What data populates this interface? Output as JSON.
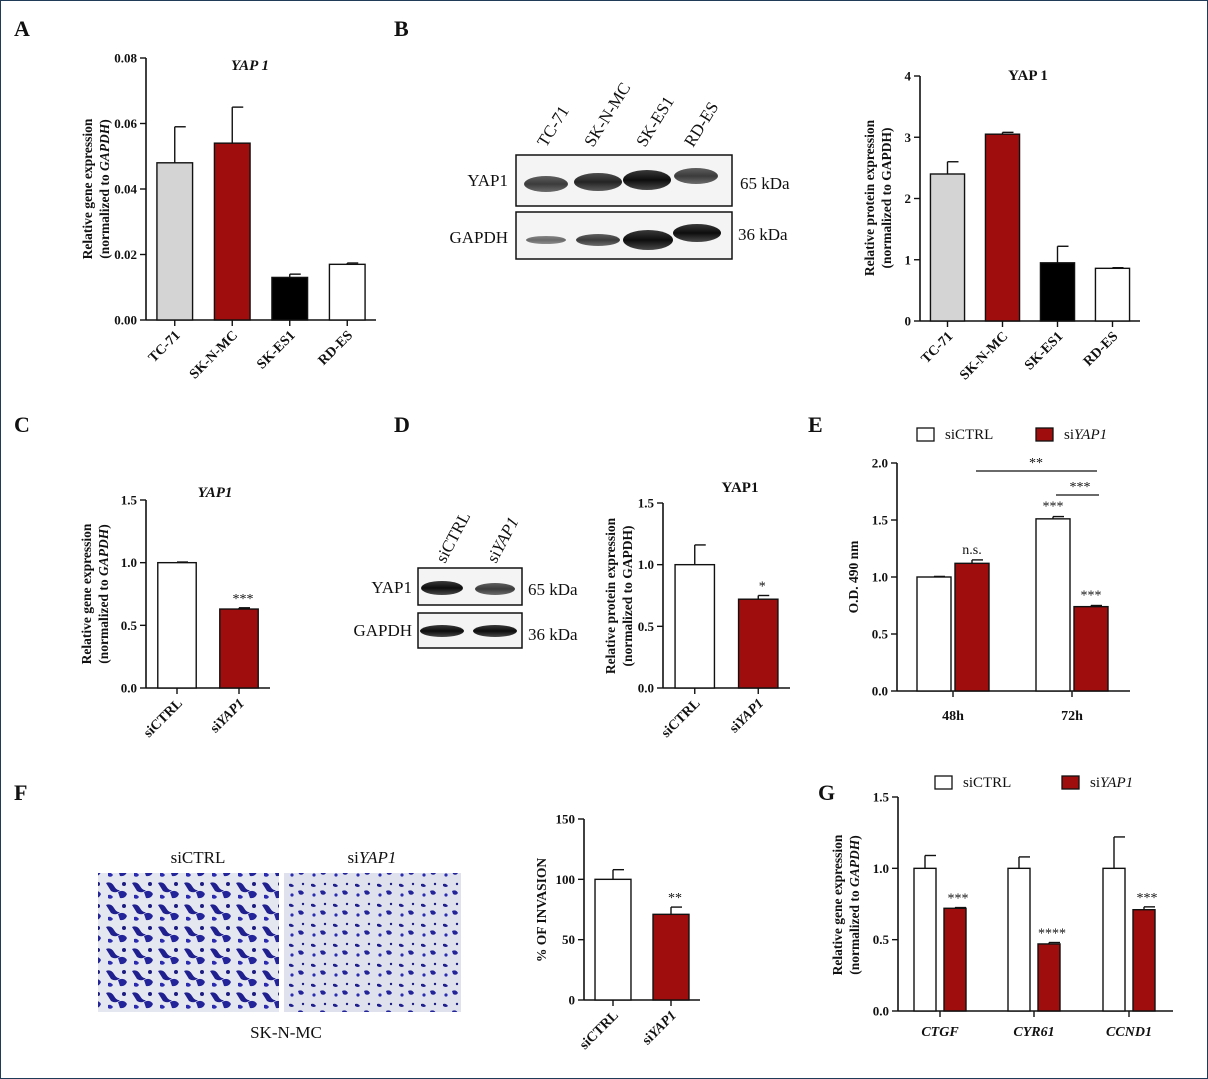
{
  "panel_labels": [
    "A",
    "B",
    "C",
    "D",
    "E",
    "F",
    "G"
  ],
  "colors": {
    "light_gray": "#d4d4d4",
    "dark_red": "#a00d0d",
    "black": "#000000",
    "white": "#ffffff",
    "blot_stain": "#2b2bb0"
  },
  "blot_B": {
    "lanes": [
      "TC-71",
      "SK-N-MC",
      "SK-ES1",
      "RD-ES"
    ],
    "rows": [
      {
        "label": "YAP1",
        "kda": "65 kDa"
      },
      {
        "label": "GAPDH",
        "kda": "36 kDa"
      }
    ]
  },
  "blot_D": {
    "lanes": [
      "siCTRL",
      "si",
      "YAP1"
    ],
    "rows": [
      {
        "label": "YAP1",
        "kda": "65 kDa"
      },
      {
        "label": "GAPDH",
        "kda": "36 kDa"
      }
    ]
  },
  "panel_F_images": {
    "left_label": "siCTRL",
    "right_label_prefix": "si",
    "right_label_gene": "YAP1",
    "caption": "SK-N-MC"
  },
  "chart_data": [
    {
      "id": "A",
      "type": "bar",
      "title": "YAP 1",
      "title_italic": true,
      "ylabel_line1": "Relative gene expression",
      "ylabel_line2_prefix": "(normalized to ",
      "ylabel_line2_italic": "GAPDH",
      "ylabel_line2_suffix": ")",
      "categories": [
        "TC-71",
        "SK-N-MC",
        "SK-ES1",
        "RD-ES"
      ],
      "values": [
        0.048,
        0.054,
        0.013,
        0.017
      ],
      "errors": [
        0.011,
        0.011,
        0.001,
        0.0004
      ],
      "bar_colors": [
        "#d4d4d4",
        "#a00d0d",
        "#000000",
        "#ffffff"
      ],
      "ylim": [
        0,
        0.08
      ],
      "yticks": [
        "0.00",
        "0.02",
        "0.04",
        "0.06",
        "0.08"
      ]
    },
    {
      "id": "B",
      "type": "bar",
      "title": "YAP 1",
      "title_italic": false,
      "ylabel_line1": "Relative protein expression",
      "ylabel_line2_prefix": "(normalized to GAPDH)",
      "ylabel_line2_italic": "",
      "ylabel_line2_suffix": "",
      "categories": [
        "TC-71",
        "SK-N-MC",
        "SK-ES1",
        "RD-ES"
      ],
      "values": [
        2.4,
        3.05,
        0.95,
        0.86
      ],
      "errors": [
        0.2,
        0.03,
        0.27,
        0.01
      ],
      "bar_colors": [
        "#d4d4d4",
        "#a00d0d",
        "#000000",
        "#ffffff"
      ],
      "ylim": [
        0,
        4
      ],
      "yticks": [
        "0",
        "1",
        "2",
        "3",
        "4"
      ]
    },
    {
      "id": "C",
      "type": "bar",
      "title": "YAP1",
      "title_italic": true,
      "ylabel_line1": "Relative gene expression",
      "ylabel_line2_prefix": "(normalized to ",
      "ylabel_line2_italic": "GAPDH",
      "ylabel_line2_suffix": ")",
      "categories": [
        "siCTRL",
        "siYAP1"
      ],
      "cat_prefix": [
        "siCTRL",
        "si"
      ],
      "cat_italic": [
        "",
        "YAP1"
      ],
      "values": [
        1.0,
        0.63
      ],
      "errors": [
        0.005,
        0.01
      ],
      "bar_colors": [
        "#ffffff",
        "#a00d0d"
      ],
      "annotations": [
        "",
        "***"
      ],
      "ylim": [
        0,
        1.5
      ],
      "yticks": [
        "0.0",
        "0.5",
        "1.0",
        "1.5"
      ]
    },
    {
      "id": "D",
      "type": "bar",
      "title": "YAP1",
      "title_italic": false,
      "ylabel_line1": "Relative protein expression",
      "ylabel_line2_prefix": "(normalized to GAPDH)",
      "ylabel_line2_italic": "",
      "ylabel_line2_suffix": "",
      "categories": [
        "siCTRL",
        "siYAP1"
      ],
      "cat_prefix": [
        "siCTRL",
        "si"
      ],
      "cat_italic": [
        "",
        "YAP1"
      ],
      "values": [
        1.0,
        0.72
      ],
      "errors": [
        0.16,
        0.03
      ],
      "bar_colors": [
        "#ffffff",
        "#a00d0d"
      ],
      "annotations": [
        "",
        "*"
      ],
      "ylim": [
        0,
        1.5
      ],
      "yticks": [
        "0.0",
        "0.5",
        "1.0",
        "1.5"
      ]
    },
    {
      "id": "E",
      "type": "bar",
      "ylabel": "O.D. 490 nm",
      "groups": [
        "48h",
        "72h"
      ],
      "series": [
        {
          "name_prefix": "siCTRL",
          "name_italic": "",
          "color": "#ffffff",
          "values": [
            1.0,
            1.51
          ],
          "errors": [
            0.005,
            0.02
          ],
          "annotations": [
            "",
            "***"
          ]
        },
        {
          "name_prefix": "si",
          "name_italic": "YAP1",
          "color": "#a00d0d",
          "values": [
            1.12,
            0.74
          ],
          "errors": [
            0.03,
            0.01
          ],
          "annotations": [
            "n.s.",
            "***"
          ]
        }
      ],
      "brackets": [
        {
          "label": "**"
        },
        {
          "label": "***"
        }
      ],
      "ylim": [
        0,
        2.0
      ],
      "yticks": [
        "0.0",
        "0.5",
        "1.0",
        "1.5",
        "2.0"
      ]
    },
    {
      "id": "F",
      "type": "bar",
      "ylabel": "% OF INVASION",
      "categories": [
        "siCTRL",
        "siYAP1"
      ],
      "cat_prefix": [
        "siCTRL",
        "si"
      ],
      "cat_italic": [
        "",
        "YAP1"
      ],
      "values": [
        100,
        71
      ],
      "errors": [
        8,
        6
      ],
      "bar_colors": [
        "#ffffff",
        "#a00d0d"
      ],
      "annotations": [
        "",
        "**"
      ],
      "ylim": [
        0,
        150
      ],
      "yticks": [
        "0",
        "50",
        "100",
        "150"
      ]
    },
    {
      "id": "G",
      "type": "bar",
      "ylabel_line1": "Relative gene expression",
      "ylabel_line2_prefix": "(normalized to ",
      "ylabel_line2_italic": "GAPDH",
      "ylabel_line2_suffix": ")",
      "groups": [
        "CTGF",
        "CYR61",
        "CCND1"
      ],
      "series": [
        {
          "name_prefix": "siCTRL",
          "name_italic": "",
          "color": "#ffffff",
          "values": [
            1.0,
            1.0,
            1.0
          ],
          "errors": [
            0.09,
            0.08,
            0.22
          ],
          "annotations": [
            "",
            "",
            ""
          ]
        },
        {
          "name_prefix": "si",
          "name_italic": "YAP1",
          "color": "#a00d0d",
          "values": [
            0.72,
            0.47,
            0.71
          ],
          "errors": [
            0.005,
            0.01,
            0.02
          ],
          "annotations": [
            "***",
            "****",
            "***"
          ]
        }
      ],
      "ylim": [
        0,
        1.5
      ],
      "yticks": [
        "0.0",
        "0.5",
        "1.0",
        "1.5"
      ]
    }
  ]
}
